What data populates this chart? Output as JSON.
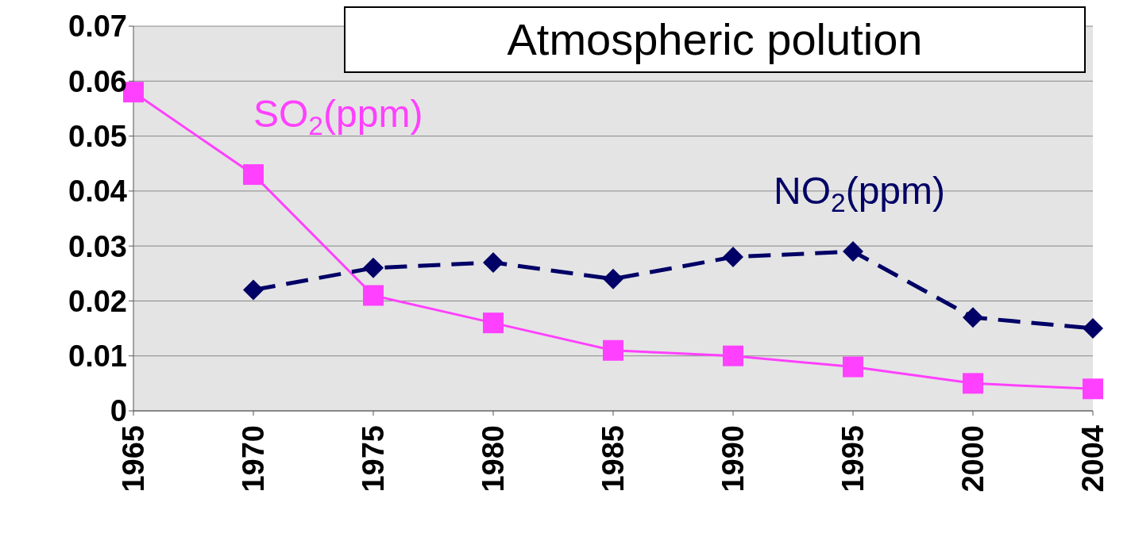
{
  "chart_data": {
    "type": "line",
    "title": "Atmospheric polution",
    "categories": [
      "1965",
      "1970",
      "1975",
      "1980",
      "1985",
      "1990",
      "1995",
      "2000",
      "2004"
    ],
    "series": [
      {
        "name": "SO$_{2}$(ppm)",
        "color": "#ff40ff",
        "marker": "square",
        "line_style": "solid",
        "values": [
          0.058,
          0.043,
          0.021,
          0.016,
          0.011,
          0.01,
          0.008,
          0.005,
          0.004
        ]
      },
      {
        "name": "NO$_{2}$(ppm)",
        "color": "#000066",
        "marker": "diamond",
        "line_style": "dashed",
        "values": [
          null,
          0.022,
          0.026,
          0.027,
          0.024,
          0.028,
          0.029,
          0.017,
          0.015
        ]
      }
    ],
    "ylim": [
      0,
      0.07
    ],
    "yticks": [
      0,
      0.01,
      0.02,
      0.03,
      0.04,
      0.05,
      0.06,
      0.07
    ],
    "grid": "y",
    "legend": false
  }
}
